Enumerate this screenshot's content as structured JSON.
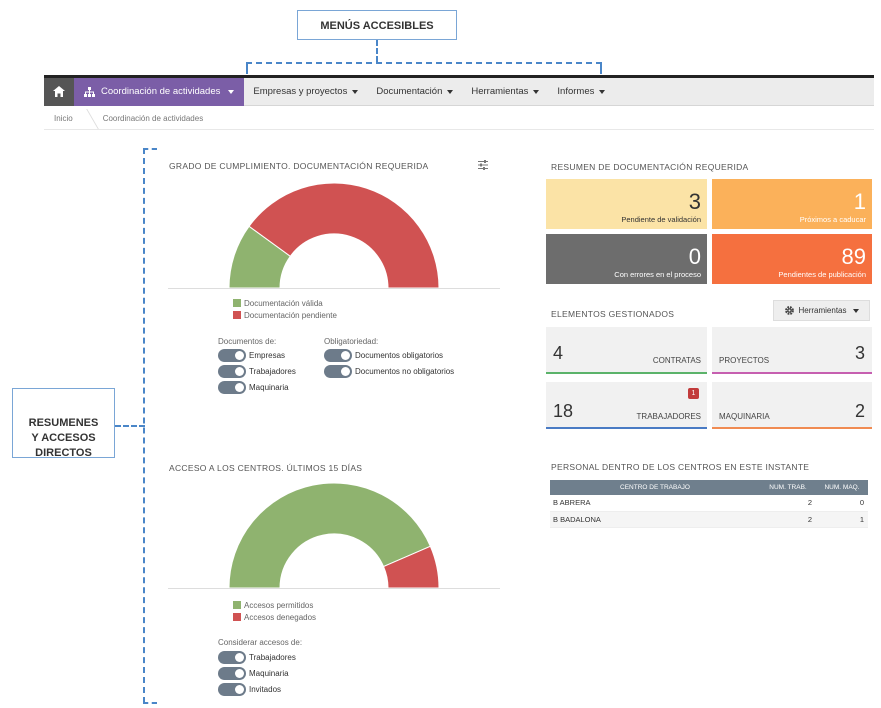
{
  "annotations": {
    "menus_label": "MENÚS ACCESIBLES",
    "summary_label": "RESUMENES\nY ACCESOS\nDIRECTOS"
  },
  "nav": {
    "active": "Coordinación de actividades",
    "items": [
      "Empresas y proyectos",
      "Documentación",
      "Herramientas",
      "Informes"
    ]
  },
  "breadcrumb": [
    "Inicio",
    "Coordinación de actividades"
  ],
  "compliance": {
    "title": "GRADO DE CUMPLIMIENTO. DOCUMENTACIÓN REQUERIDA",
    "legend": [
      "Documentación válida",
      "Documentación pendiente"
    ],
    "colors": [
      "#8fb36f",
      "#d05252"
    ],
    "valid_fraction": 0.2,
    "docs_label": "Documentos de:",
    "docs_toggles": [
      "Empresas",
      "Trabajadores",
      "Maquinaria"
    ],
    "oblig_label": "Obligatoriedad:",
    "oblig_toggles": [
      "Documentos obligatorios",
      "Documentos no obligatorios"
    ]
  },
  "access": {
    "title": "ACCESO A LOS CENTROS. ÚLTIMOS 15 DÍAS",
    "legend": [
      "Accesos permitidos",
      "Accesos denegados"
    ],
    "colors": [
      "#8fb36f",
      "#d05252"
    ],
    "allowed_fraction": 0.87,
    "consider_label": "Considerar accesos de:",
    "toggles": [
      "Trabajadores",
      "Maquinaria",
      "Invitados"
    ]
  },
  "summary": {
    "title": "RESUMEN DE DOCUMENTACIÓN REQUERIDA",
    "tiles": [
      {
        "value": "3",
        "label": "Pendiente de validación",
        "color": "#fbe3a6"
      },
      {
        "value": "1",
        "label": "Próximos a caducar",
        "color": "#fbb15a"
      },
      {
        "value": "0",
        "label": "Con errores en el proceso",
        "color": "#6d6d6d"
      },
      {
        "value": "89",
        "label": "Pendientes de publicación",
        "color": "#f5703f"
      }
    ]
  },
  "managed": {
    "title": "ELEMENTOS GESTIONADOS",
    "tools_button": "Herramientas",
    "cards": [
      {
        "value": "4",
        "label": "CONTRATAS",
        "color": "#5bb36a"
      },
      {
        "value": "3",
        "label": "PROYECTOS",
        "color": "#c65fb0"
      },
      {
        "value": "18",
        "label": "TRABAJADORES",
        "color": "#4a7bc4",
        "badge": "1"
      },
      {
        "value": "2",
        "label": "MAQUINARIA",
        "color": "#f08b52"
      }
    ]
  },
  "people": {
    "title": "PERSONAL DENTRO DE LOS CENTROS EN ESTE INSTANTE",
    "headers": [
      "CENTRO DE TRABAJO",
      "NUM. TRAB.",
      "NUM. MAQ."
    ],
    "rows": [
      [
        "B ABRERA",
        "2",
        "0"
      ],
      [
        "B BADALONA",
        "2",
        "1"
      ]
    ]
  }
}
